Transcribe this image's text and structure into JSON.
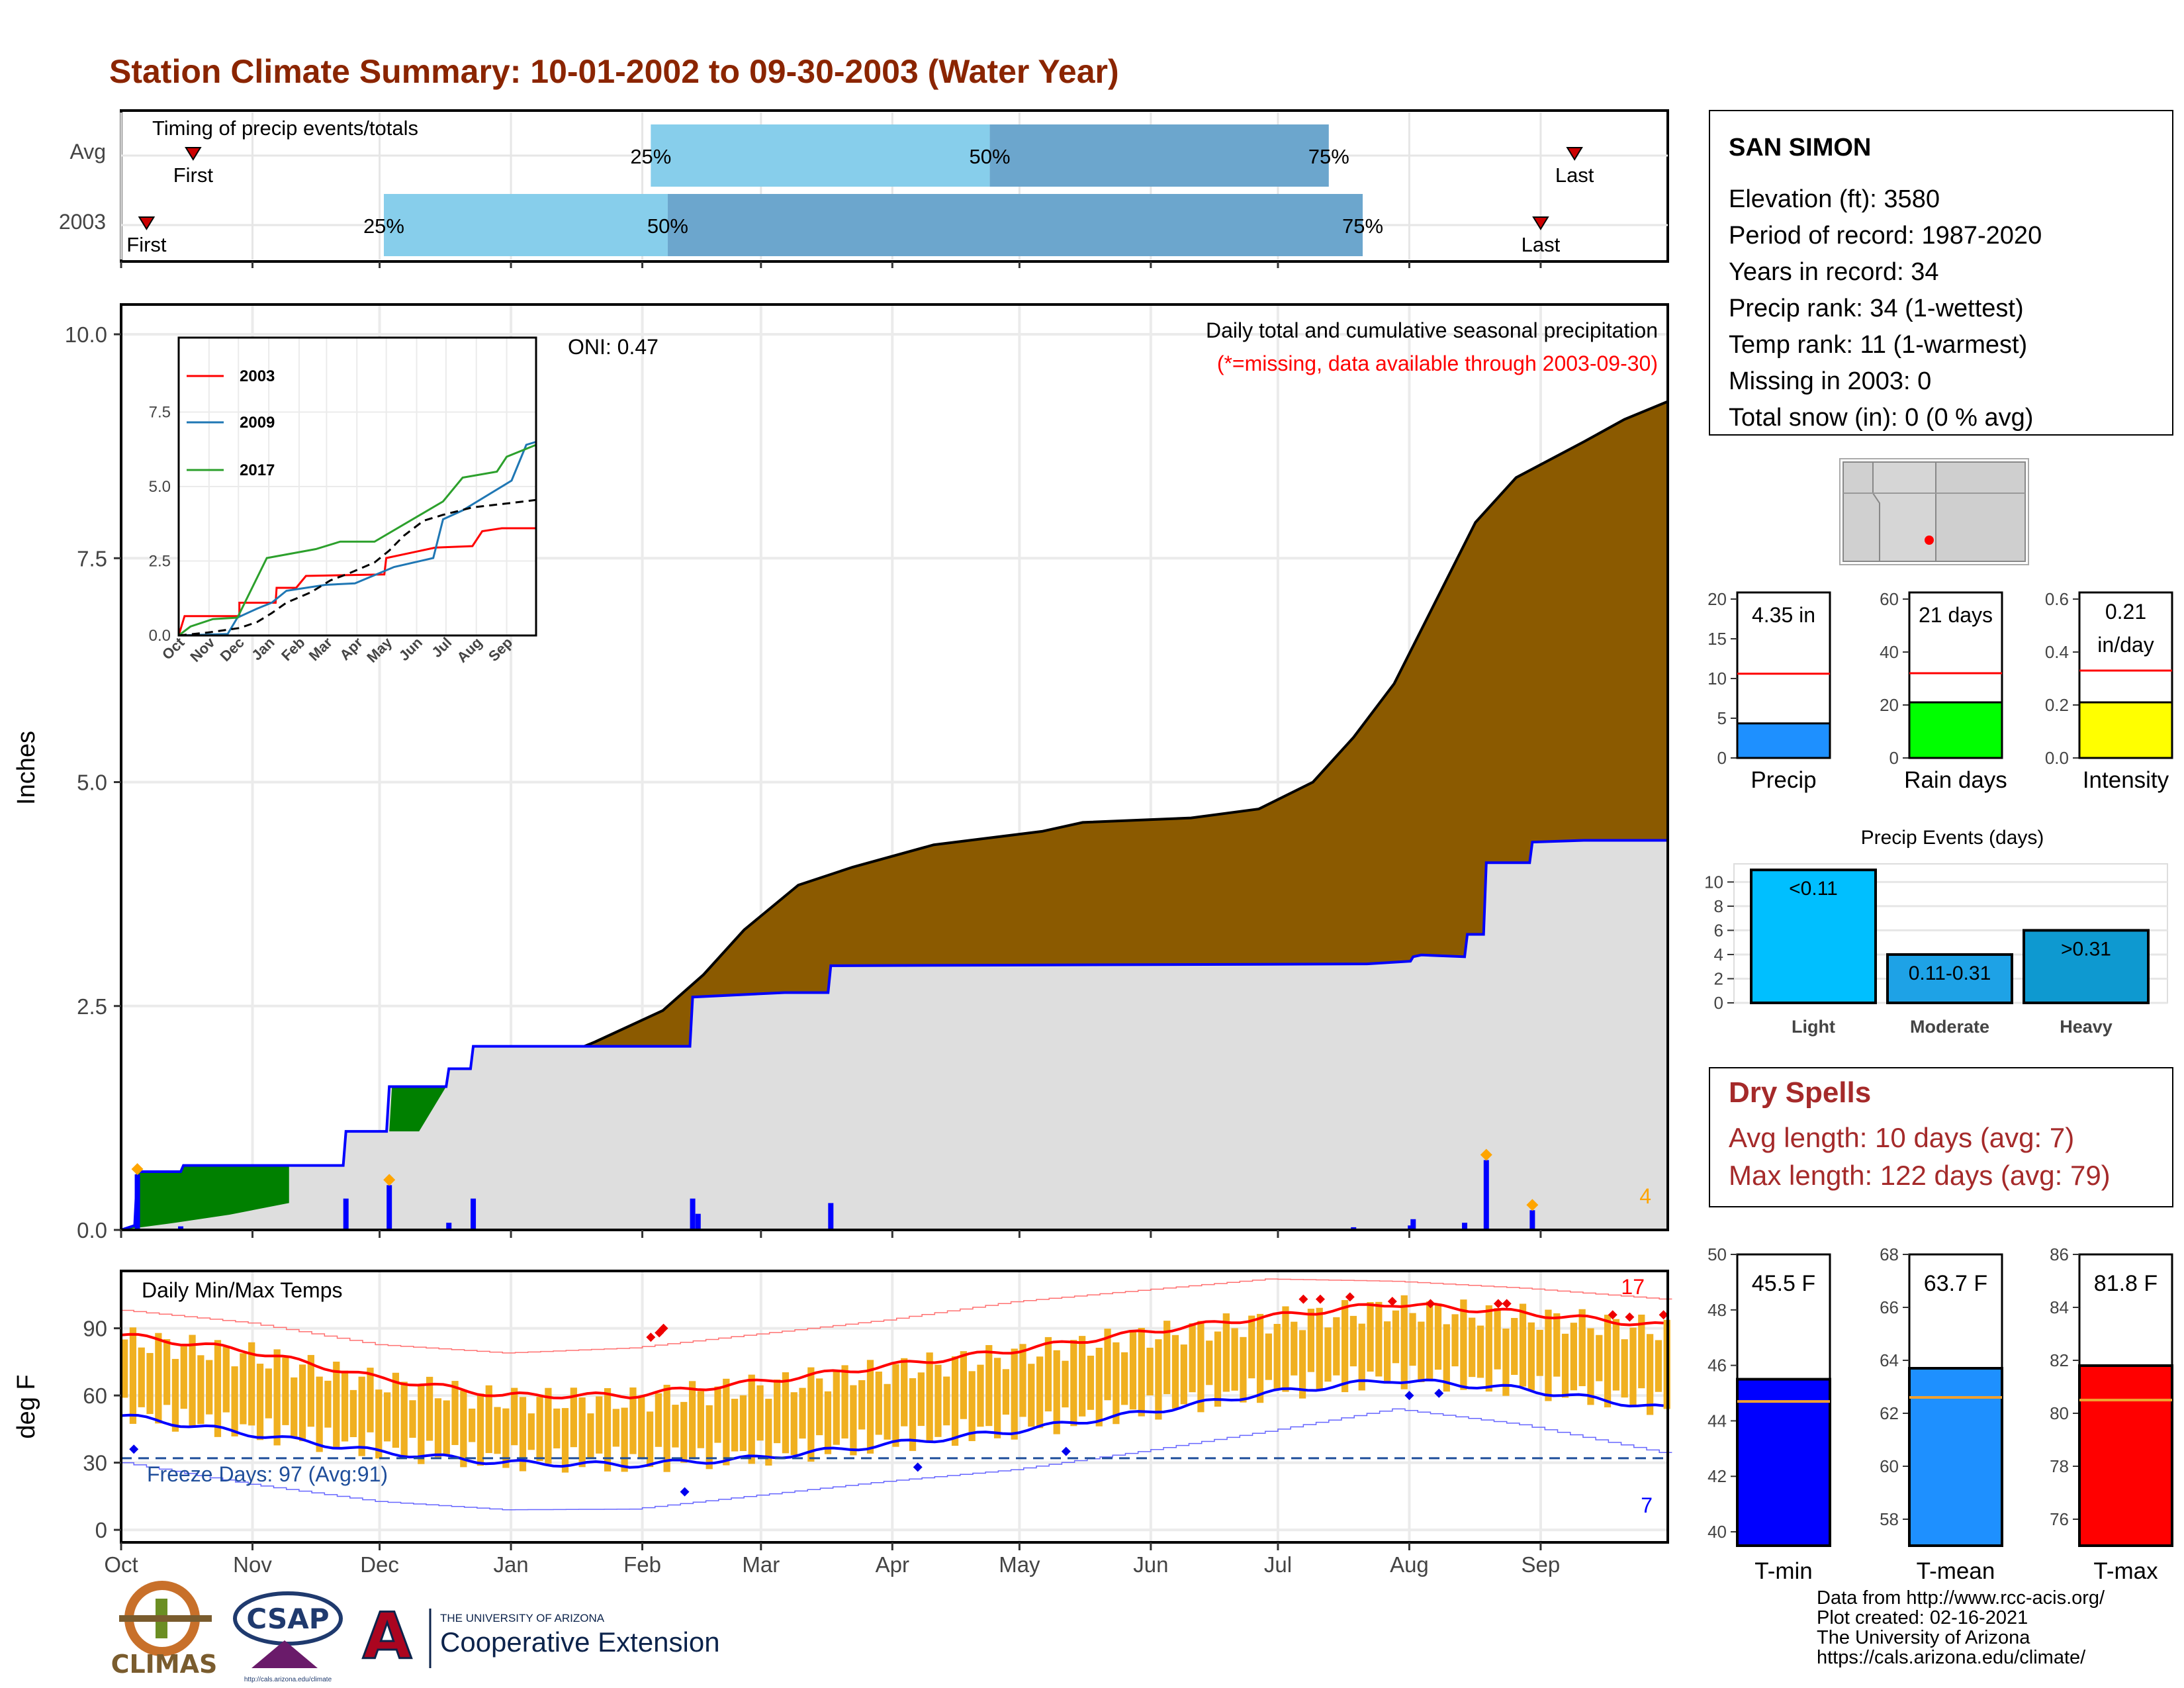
{
  "title": "Station Climate Summary: 10-01-2002 to 09-30-2003 (Water Year)",
  "months": [
    "Oct",
    "Nov",
    "Dec",
    "Jan",
    "Feb",
    "Mar",
    "Apr",
    "May",
    "Jun",
    "Jul",
    "Aug",
    "Sep"
  ],
  "colors": {
    "title": "#8B2500",
    "cumulative_fill": "#8B5A00",
    "avg_fill": "#DEDEDE",
    "avg_line": "#0000FF",
    "deficit_fill": "#008000",
    "daily_bar": "#0000FF",
    "marker": "#FFA500",
    "timing_light": "#87CEEB",
    "timing_dark": "#6CA6CD",
    "tmin": "#0000FF",
    "tmean": "#1E90FF",
    "tmax": "#FF0000",
    "temp_bar": "#F0B020",
    "dry_spells": "#A52A2A"
  },
  "timing": {
    "caption": "Timing of precip events/totals",
    "rows": [
      {
        "label": "Avg",
        "first_day": 17,
        "p25_day": 125,
        "p50_day": 205,
        "p75_day": 285,
        "last_day": 343,
        "labels": {
          "first": "First",
          "p25": "25%",
          "p50": "50%",
          "p75": "75%",
          "last": "Last"
        }
      },
      {
        "label": "2003",
        "first_day": 6,
        "p25_day": 62,
        "p50_day": 129,
        "p75_day": 293,
        "last_day": 335,
        "labels": {
          "first": "First",
          "p25": "25%",
          "p50": "50%",
          "p75": "75%",
          "last": "Last"
        }
      }
    ]
  },
  "precip_panel": {
    "ylabel": "Inches",
    "yticks": [
      "0.0",
      "2.5",
      "5.0",
      "7.5",
      "10.0"
    ],
    "ylim": [
      0,
      10.0
    ],
    "subtitle": "Daily total and cumulative seasonal precipitation",
    "missing_note": "(*=missing, data available through 2003-09-30)",
    "oni": "ONI: 0.47",
    "max_daily_count": "4",
    "chart_data": {
      "type": "area",
      "cumulative_avg": [
        [
          0,
          0
        ],
        [
          30,
          0.1
        ],
        [
          62,
          0.25
        ],
        [
          80,
          0.45
        ],
        [
          95,
          0.75
        ],
        [
          110,
          1.1
        ],
        [
          135,
          1.45
        ],
        [
          155,
          1.85
        ],
        [
          175,
          2.1
        ],
        [
          200,
          2.45
        ],
        [
          215,
          2.85
        ],
        [
          230,
          3.35
        ],
        [
          250,
          3.85
        ],
        [
          270,
          4.05
        ],
        [
          300,
          4.3
        ],
        [
          340,
          4.45
        ],
        [
          355,
          4.55
        ],
        [
          395,
          4.6
        ],
        [
          420,
          4.7
        ],
        [
          440,
          5.0
        ],
        [
          455,
          5.5
        ],
        [
          470,
          6.1
        ],
        [
          485,
          7.0
        ],
        [
          500,
          7.9
        ],
        [
          515,
          8.4
        ],
        [
          540,
          8.8
        ],
        [
          555,
          9.05
        ],
        [
          571,
          9.25
        ]
      ],
      "cumulative_2003": [
        [
          0,
          0
        ],
        [
          5,
          0.05
        ],
        [
          6,
          0.65
        ],
        [
          22,
          0.65
        ],
        [
          23,
          0.72
        ],
        [
          45,
          0.72
        ],
        [
          62,
          0.72
        ],
        [
          82,
          0.72
        ],
        [
          83,
          1.1
        ],
        [
          98,
          1.1
        ],
        [
          99,
          1.6
        ],
        [
          120,
          1.6
        ],
        [
          121,
          1.8
        ],
        [
          129,
          1.8
        ],
        [
          130,
          2.05
        ],
        [
          210,
          2.05
        ],
        [
          211,
          2.6
        ],
        [
          245,
          2.65
        ],
        [
          261,
          2.65
        ],
        [
          262,
          2.95
        ],
        [
          460,
          2.97
        ],
        [
          476,
          3.0
        ],
        [
          477,
          3.05
        ],
        [
          480,
          3.07
        ],
        [
          496,
          3.05
        ],
        [
          497,
          3.3
        ],
        [
          503,
          3.3
        ],
        [
          504,
          4.1
        ],
        [
          520,
          4.1
        ],
        [
          521,
          4.33
        ],
        [
          540,
          4.35
        ],
        [
          571,
          4.35
        ]
      ],
      "daily_2003": [
        [
          6,
          0.62
        ],
        [
          22,
          0.04
        ],
        [
          83,
          0.35
        ],
        [
          99,
          0.5
        ],
        [
          121,
          0.08
        ],
        [
          130,
          0.35
        ],
        [
          211,
          0.35
        ],
        [
          213,
          0.18
        ],
        [
          262,
          0.3
        ],
        [
          455,
          0.03
        ],
        [
          476,
          0.05
        ],
        [
          477,
          0.12
        ],
        [
          496,
          0.08
        ],
        [
          504,
          0.78
        ],
        [
          521,
          0.22
        ]
      ],
      "notable_markers": [
        6,
        99,
        504,
        521
      ]
    },
    "inset": {
      "yticks": [
        "0.0",
        "2.5",
        "5.0",
        "7.5"
      ],
      "series": [
        {
          "name": "2003",
          "color": "#FF0000",
          "values": [
            [
              0,
              0
            ],
            [
              6,
              0.65
            ],
            [
              62,
              0.65
            ],
            [
              62,
              1.1
            ],
            [
              99,
              1.1
            ],
            [
              100,
              1.6
            ],
            [
              120,
              1.6
            ],
            [
              125,
              1.8
            ],
            [
              130,
              2.0
            ],
            [
              210,
              2.05
            ],
            [
              212,
              2.6
            ],
            [
              262,
              2.95
            ],
            [
              300,
              3.0
            ],
            [
              310,
              3.5
            ],
            [
              330,
              3.6
            ],
            [
              365,
              3.6
            ]
          ]
        },
        {
          "name": "2009",
          "color": "#1F77B4",
          "values": [
            [
              0,
              0
            ],
            [
              50,
              0.05
            ],
            [
              60,
              0.6
            ],
            [
              80,
              0.9
            ],
            [
              95,
              1.1
            ],
            [
              110,
              1.5
            ],
            [
              150,
              1.7
            ],
            [
              180,
              1.75
            ],
            [
              220,
              2.3
            ],
            [
              260,
              2.6
            ],
            [
              270,
              3.9
            ],
            [
              290,
              4.2
            ],
            [
              340,
              5.2
            ],
            [
              355,
              6.4
            ],
            [
              365,
              6.5
            ]
          ]
        },
        {
          "name": "2017",
          "color": "#2CA02C",
          "values": [
            [
              0,
              0
            ],
            [
              12,
              0.3
            ],
            [
              35,
              0.55
            ],
            [
              60,
              0.6
            ],
            [
              75,
              1.6
            ],
            [
              90,
              2.6
            ],
            [
              140,
              2.9
            ],
            [
              165,
              3.15
            ],
            [
              200,
              3.15
            ],
            [
              270,
              4.5
            ],
            [
              290,
              5.3
            ],
            [
              325,
              5.5
            ],
            [
              335,
              6.0
            ],
            [
              365,
              6.4
            ]
          ]
        },
        {
          "name": "avg",
          "color": "#000000",
          "dashed": true,
          "values": [
            [
              0,
              0
            ],
            [
              30,
              0.1
            ],
            [
              62,
              0.25
            ],
            [
              80,
              0.45
            ],
            [
              95,
              0.75
            ],
            [
              110,
              1.1
            ],
            [
              135,
              1.45
            ],
            [
              155,
              1.85
            ],
            [
              175,
              2.1
            ],
            [
              200,
              2.45
            ],
            [
              215,
              2.85
            ],
            [
              230,
              3.35
            ],
            [
              250,
              3.85
            ],
            [
              270,
              4.05
            ],
            [
              300,
              4.3
            ],
            [
              340,
              4.45
            ],
            [
              365,
              4.55
            ]
          ]
        }
      ],
      "xticks": [
        "Oct",
        "Nov",
        "Dec",
        "Jan",
        "Feb",
        "Mar",
        "Apr",
        "May",
        "Jun",
        "Jul",
        "Aug",
        "Sep"
      ]
    }
  },
  "temp_panel": {
    "ylabel": "deg F",
    "caption": "Daily Min/Max Temps",
    "yticks": [
      "0",
      "30",
      "60",
      "90"
    ],
    "ylim": [
      -5,
      115
    ],
    "freeze_days": "Freeze Days: 97 (Avg:91)",
    "max_count": "17",
    "min_count": "7",
    "chart_data": {
      "type": "line",
      "avg_max": [
        [
          0,
          87
        ],
        [
          30,
          80
        ],
        [
          60,
          68
        ],
        [
          90,
          60
        ],
        [
          120,
          60
        ],
        [
          150,
          66
        ],
        [
          180,
          73
        ],
        [
          210,
          80
        ],
        [
          240,
          88
        ],
        [
          270,
          95
        ],
        [
          300,
          101
        ],
        [
          330,
          97
        ],
        [
          365,
          91
        ]
      ],
      "avg_min": [
        [
          0,
          51
        ],
        [
          30,
          43
        ],
        [
          60,
          35
        ],
        [
          90,
          30
        ],
        [
          120,
          29
        ],
        [
          150,
          32
        ],
        [
          180,
          38
        ],
        [
          210,
          44
        ],
        [
          240,
          52
        ],
        [
          270,
          61
        ],
        [
          300,
          67
        ],
        [
          330,
          63
        ],
        [
          365,
          54
        ]
      ],
      "record_high": [
        [
          0,
          98
        ],
        [
          30,
          92
        ],
        [
          60,
          82
        ],
        [
          90,
          78
        ],
        [
          120,
          80
        ],
        [
          150,
          86
        ],
        [
          180,
          92
        ],
        [
          210,
          100
        ],
        [
          240,
          105
        ],
        [
          270,
          110
        ],
        [
          300,
          109
        ],
        [
          330,
          106
        ],
        [
          365,
          101
        ]
      ],
      "record_low": [
        [
          0,
          30
        ],
        [
          30,
          20
        ],
        [
          60,
          12
        ],
        [
          90,
          8
        ],
        [
          120,
          8
        ],
        [
          150,
          14
        ],
        [
          180,
          20
        ],
        [
          210,
          25
        ],
        [
          240,
          33
        ],
        [
          270,
          42
        ],
        [
          300,
          52
        ],
        [
          330,
          45
        ],
        [
          365,
          32
        ]
      ],
      "freeze_line": 32
    }
  },
  "station": {
    "name": "SAN SIMON",
    "lines": [
      "Elevation (ft): 3580",
      "Period of record: 1987-2020",
      "Years in record: 34",
      "Precip rank: 34 (1-wettest)",
      "Temp rank: 11 (1-warmest)",
      "Missing in 2003: 0",
      "Total snow (in): 0 (0 % avg)"
    ]
  },
  "mini_bars": [
    {
      "label": "Precip",
      "value_text": "4.35 in",
      "value": 4.35,
      "avg": 10.6,
      "ymax": 20,
      "yticks": [
        "0",
        "5",
        "10",
        "15",
        "20"
      ],
      "color": "#1E90FF"
    },
    {
      "label": "Rain days",
      "value_text": "21 days",
      "value": 21,
      "avg": 32,
      "ymax": 60,
      "yticks": [
        "0",
        "20",
        "40",
        "60"
      ],
      "color": "#00FF00"
    },
    {
      "label": "Intensity",
      "value_text": "0.21",
      "value_text2": "in/day",
      "value": 0.21,
      "avg": 0.33,
      "ymax": 0.6,
      "yticks": [
        "0.0",
        "0.2",
        "0.4",
        "0.6"
      ],
      "color": "#FFFF00"
    }
  ],
  "precip_events": {
    "title": "Precip Events (days)",
    "yticks": [
      "0",
      "2",
      "4",
      "6",
      "8",
      "10"
    ],
    "chart_data": {
      "type": "bar",
      "categories": [
        "Light",
        "Moderate",
        "Heavy"
      ],
      "values": [
        11,
        4,
        6
      ],
      "labels": [
        "<0.11",
        "0.11-0.31",
        ">0.31"
      ],
      "colors": [
        "#00BFFF",
        "#1EA2E6",
        "#0E99D0"
      ]
    }
  },
  "dry_spells": {
    "title": "Dry Spells",
    "avg_length": "Avg length: 10 days (avg: 7)",
    "max_length": "Max length: 122 days (avg: 79)"
  },
  "temp_bars": [
    {
      "label": "T-min",
      "value_text": "45.5 F",
      "value": 45.5,
      "avg": 44.7,
      "ymin": 39.5,
      "ymax": 50,
      "yticks": [
        "40",
        "42",
        "44",
        "46",
        "48",
        "50"
      ],
      "color": "#0000FF"
    },
    {
      "label": "T-mean",
      "value_text": "63.7 F",
      "value": 63.7,
      "avg": 62.6,
      "ymin": 57,
      "ymax": 68,
      "yticks": [
        "58",
        "60",
        "62",
        "64",
        "66",
        "68"
      ],
      "color": "#1E90FF"
    },
    {
      "label": "T-max",
      "value_text": "81.8 F",
      "value": 81.8,
      "avg": 80.5,
      "ymin": 75,
      "ymax": 86,
      "yticks": [
        "76",
        "78",
        "80",
        "82",
        "84",
        "86"
      ],
      "color": "#FF0000"
    }
  ],
  "footer": {
    "lines": [
      "Data from http://www.rcc-acis.org/",
      "Plot created: 02-16-2021",
      "The University of Arizona",
      "https://cals.arizona.edu/climate/"
    ],
    "logos": {
      "climas": "CLIMAS",
      "csap": "CSAP",
      "csap_url": "http://cals.arizona.edu/climate",
      "ua_small": "THE UNIVERSITY OF ARIZONA",
      "ua_big": "Cooperative Extension"
    }
  }
}
